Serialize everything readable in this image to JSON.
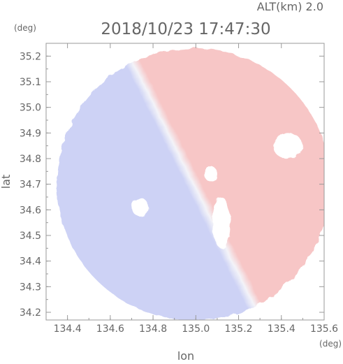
{
  "header": {
    "altitude_label": "ALT(km)  2.0",
    "timestamp": "2018/10/23 17:47:30"
  },
  "chart_data": {
    "type": "heatmap",
    "title": "2018/10/23 17:47:30",
    "subtitle": "ALT(km)  2.0",
    "xlabel": "lon",
    "ylabel": "lat",
    "x_unit": "(deg)",
    "y_unit": "(deg)",
    "xlim": [
      134.3,
      135.6
    ],
    "ylim": [
      34.17,
      35.25
    ],
    "x_ticks": [
      "134.4",
      "134.6",
      "134.8",
      "135.0",
      "135.2",
      "135.4",
      "135.6"
    ],
    "y_ticks": [
      "34.2",
      "34.3",
      "34.4",
      "34.5",
      "34.6",
      "34.7",
      "34.8",
      "34.9",
      "35.0",
      "35.1",
      "35.2"
    ],
    "grid": false,
    "field": {
      "kind": "doppler-velocity-dipole",
      "center": [
        134.99,
        34.7
      ],
      "radius_deg": 0.64,
      "positive_color": "#f7c6c6",
      "negative_color": "#cdd2f5",
      "zero_color": "#f3f3f8"
    },
    "gaps": [
      {
        "center": [
          134.74,
          34.61
        ],
        "rx": 0.04,
        "ry": 0.035
      },
      {
        "center": [
          135.07,
          34.74
        ],
        "rx": 0.03,
        "ry": 0.03
      },
      {
        "center": [
          135.12,
          34.55
        ],
        "rx": 0.04,
        "ry": 0.1
      },
      {
        "center": [
          135.43,
          34.85
        ],
        "rx": 0.07,
        "ry": 0.05
      }
    ]
  },
  "colors": {
    "axis": "#999999",
    "text": "#666666"
  }
}
